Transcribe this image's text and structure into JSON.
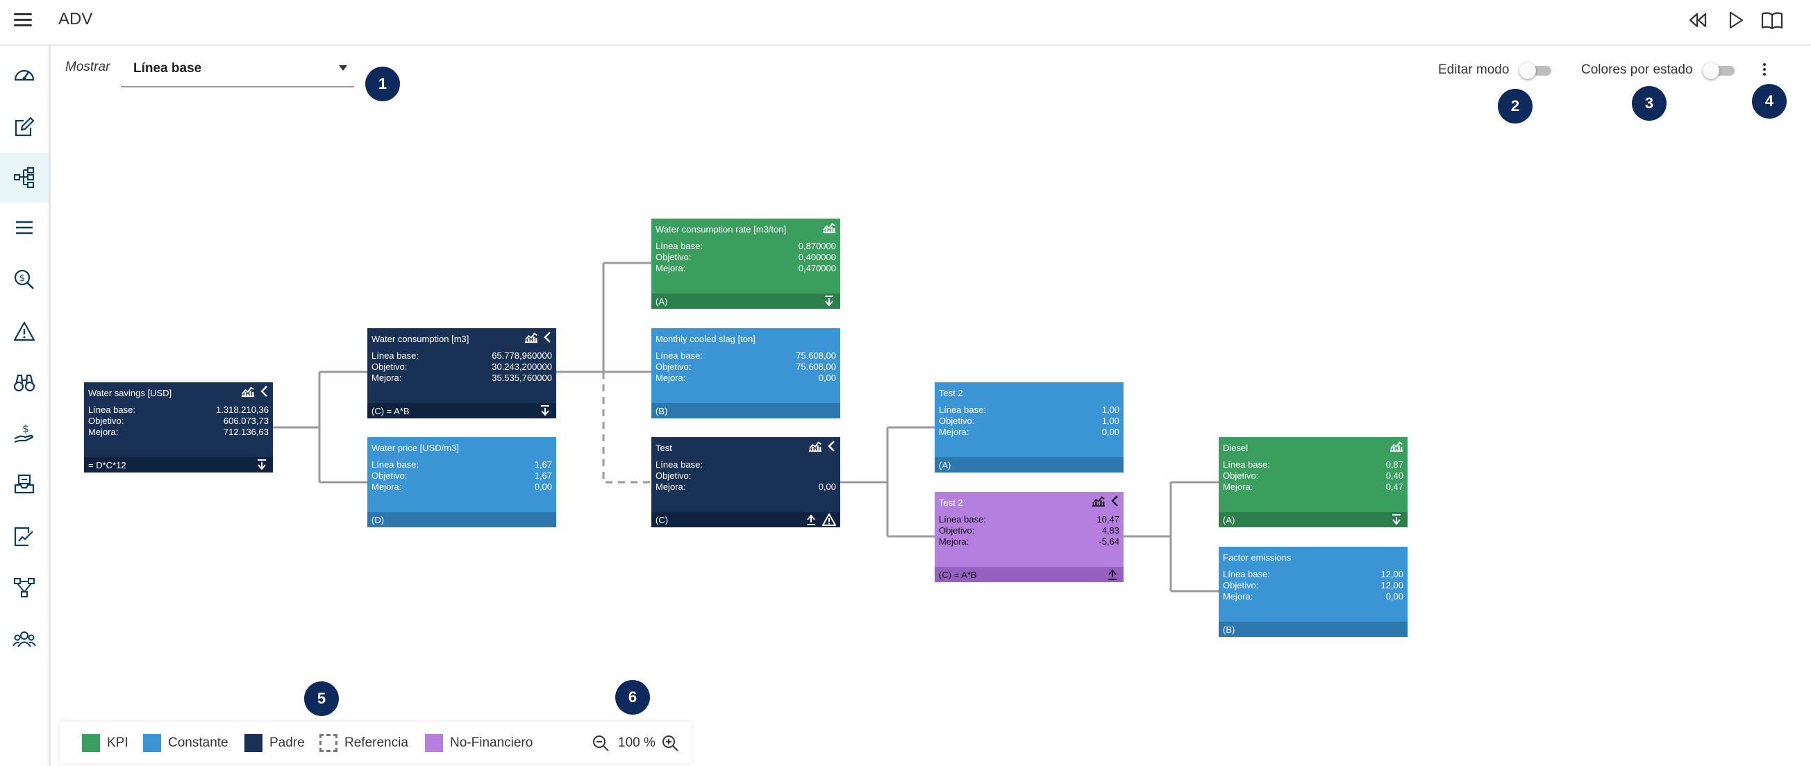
{
  "app": {
    "title": "ADV"
  },
  "toolbar": {
    "icons": [
      "rewind-icon",
      "play-icon",
      "book-icon"
    ]
  },
  "sidebar": {
    "items": [
      {
        "icon": "dashboard-icon"
      },
      {
        "icon": "edit-icon"
      },
      {
        "icon": "tree-icon",
        "active": true
      },
      {
        "icon": "list-icon"
      },
      {
        "icon": "search-money-icon"
      },
      {
        "icon": "warning-icon"
      },
      {
        "icon": "binoculars-icon"
      },
      {
        "icon": "hand-money-icon"
      },
      {
        "icon": "inbox-icon"
      },
      {
        "icon": "report-chart-icon"
      },
      {
        "icon": "workflow-icon"
      },
      {
        "icon": "users-icon"
      }
    ]
  },
  "filter": {
    "label": "Mostrar",
    "value": "Línea base"
  },
  "controls": {
    "edit_mode": "Editar modo",
    "colors_by_state": "Colores por estado"
  },
  "badges": [
    "1",
    "2",
    "3",
    "4",
    "5",
    "6"
  ],
  "nodes": {
    "water_savings": {
      "title": "Water savings [USD]",
      "rows": [
        {
          "k": "Línea base:",
          "v": "1.318.210,36"
        },
        {
          "k": "Objetivo:",
          "v": "606.073,73"
        },
        {
          "k": "Mejora:",
          "v": "712.136,63"
        }
      ],
      "footer": "= D*C*12"
    },
    "water_consumption": {
      "title": "Water consumption [m3]",
      "rows": [
        {
          "k": "Línea base:",
          "v": "65.778,960000"
        },
        {
          "k": "Objetivo:",
          "v": "30.243,200000"
        },
        {
          "k": "Mejora:",
          "v": "35.535,760000"
        }
      ],
      "footer": "(C) = A*B"
    },
    "water_price": {
      "title": "Water price [USD/m3]",
      "rows": [
        {
          "k": "Línea base:",
          "v": "1,67"
        },
        {
          "k": "Objetivo:",
          "v": "1,67"
        },
        {
          "k": "Mejora:",
          "v": "0,00"
        }
      ],
      "footer": "(D)"
    },
    "water_rate": {
      "title": "Water consumption rate [m3/ton]",
      "rows": [
        {
          "k": "Línea base:",
          "v": "0,870000"
        },
        {
          "k": "Objetivo:",
          "v": "0,400000"
        },
        {
          "k": "Mejora:",
          "v": "0,470000"
        }
      ],
      "footer": "(A)"
    },
    "cooled_slag": {
      "title": "Monthly cooled slag [ton]",
      "rows": [
        {
          "k": "Línea base:",
          "v": "75.608,00"
        },
        {
          "k": "Objetivo:",
          "v": "75.608,00"
        },
        {
          "k": "Mejora:",
          "v": "0,00"
        }
      ],
      "footer": "(B)"
    },
    "test": {
      "title": "Test",
      "rows": [
        {
          "k": "Línea base:",
          "v": ""
        },
        {
          "k": "Objetivo:",
          "v": ""
        },
        {
          "k": "Mejora:",
          "v": "0,00"
        }
      ],
      "footer": "(C)"
    },
    "test2a": {
      "title": "Test 2",
      "rows": [
        {
          "k": "Línea base:",
          "v": "1,00"
        },
        {
          "k": "Objetivo:",
          "v": "1,00"
        },
        {
          "k": "Mejora:",
          "v": "0,00"
        }
      ],
      "footer": "(A)"
    },
    "test2b": {
      "title": "Test 2",
      "rows": [
        {
          "k": "Línea base:",
          "v": "10,47"
        },
        {
          "k": "Objetivo:",
          "v": "4,83"
        },
        {
          "k": "Mejora:",
          "v": "-5,64"
        }
      ],
      "footer": "(C) = A*B"
    },
    "diesel": {
      "title": "Diesel",
      "rows": [
        {
          "k": "Línea base:",
          "v": "0,87"
        },
        {
          "k": "Objetivo:",
          "v": "0,40"
        },
        {
          "k": "Mejora:",
          "v": "0,47"
        }
      ],
      "footer": "(A)"
    },
    "factor": {
      "title": "Factor emissions",
      "rows": [
        {
          "k": "Línea base:",
          "v": "12,00"
        },
        {
          "k": "Objetivo:",
          "v": "12,00"
        },
        {
          "k": "Mejora:",
          "v": "0,00"
        }
      ],
      "footer": "(B)"
    }
  },
  "legend": {
    "items": [
      {
        "label": "KPI",
        "color": "#3a9e5f"
      },
      {
        "label": "Constante",
        "color": "#3b94d3"
      },
      {
        "label": "Padre",
        "color": "#183154"
      },
      {
        "label": "Referencia",
        "color": "dashed"
      },
      {
        "label": "No-Financiero",
        "color": "#b57fe0"
      }
    ],
    "zoom": "100 %"
  }
}
